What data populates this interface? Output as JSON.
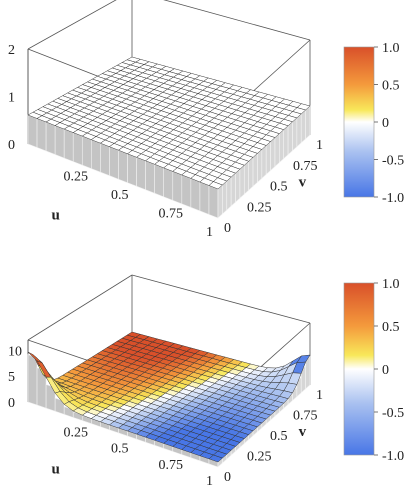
{
  "chart_data": [
    {
      "type": "surface3d",
      "title": "",
      "xlabel": "u",
      "ylabel": "v",
      "zlabel": "",
      "xlim": [
        0,
        1
      ],
      "ylim": [
        0,
        1
      ],
      "zlim": [
        0,
        2
      ],
      "grid_points": 21,
      "surface": "constant",
      "z_value": 1,
      "color_value": 0,
      "x_ticks": [
        "0.25",
        "0.5",
        "0.75",
        "1"
      ],
      "y_ticks": [
        "0",
        "0.25",
        "0.5",
        "0.75",
        "1"
      ],
      "z_ticks": [
        "0",
        "1",
        "2"
      ],
      "colorbar": {
        "min": -1,
        "max": 1,
        "ticks": [
          "1.0",
          "0.5",
          "0",
          "-0.5",
          "-1.0"
        ]
      }
    },
    {
      "type": "surface3d",
      "title": "",
      "xlabel": "u",
      "ylabel": "v",
      "zlabel": "",
      "xlim": [
        0,
        1
      ],
      "ylim": [
        0,
        1
      ],
      "zlim": [
        0,
        12
      ],
      "grid_points": 21,
      "surface": "corner-peaked",
      "corner_values": {
        "u0_v0": 10,
        "u1_v1": 6,
        "interior": 1
      },
      "x_ticks": [
        "0.25",
        "0.5",
        "0.75",
        "1"
      ],
      "y_ticks": [
        "0",
        "0.25",
        "0.5",
        "0.75",
        "1"
      ],
      "z_ticks": [
        "0",
        "5",
        "10"
      ],
      "colorbar": {
        "min": -1,
        "max": 1,
        "ticks": [
          "1.0",
          "0.5",
          "0",
          "-0.5",
          "-1.0"
        ]
      }
    }
  ],
  "colors": {
    "high": "#e05a2b",
    "mid_high": "#f7b733",
    "mid": "#ffffff",
    "low": "#4a7be8",
    "pillar": "#c6c6c6",
    "grid": "#444444"
  }
}
